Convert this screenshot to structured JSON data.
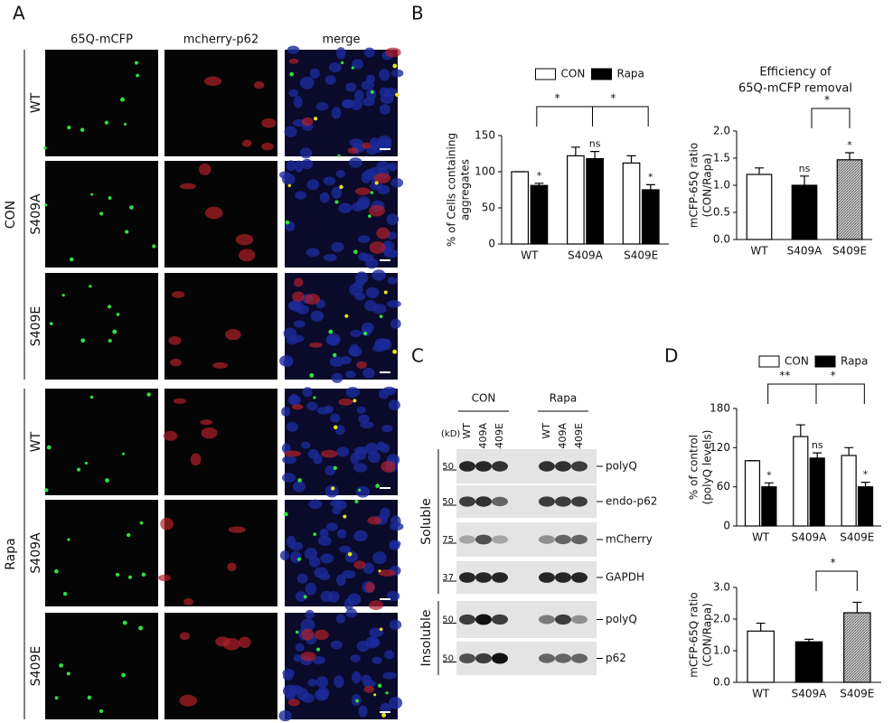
{
  "panel_labels": [
    "A",
    "B",
    "C",
    "D"
  ],
  "panel_a": {
    "columns": [
      "65Q-mCFP",
      "mcherry-p62",
      "merge"
    ],
    "groups": [
      {
        "label": "CON",
        "rows": [
          "WT",
          "S409A",
          "S409E"
        ]
      },
      {
        "label": "Rapa",
        "rows": [
          "WT",
          "S409A",
          "S409E"
        ]
      }
    ]
  },
  "chart_data": [
    {
      "type": "bar",
      "ylabel": [
        "% of Cells containing",
        "aggregates"
      ],
      "categories": [
        "WT",
        "S409A",
        "S409E"
      ],
      "series": [
        {
          "name": "CON",
          "color": "#ffffff",
          "values": [
            100,
            122,
            112
          ],
          "errors": [
            0,
            12,
            10
          ],
          "annotations": [
            null,
            null,
            null
          ]
        },
        {
          "name": "Rapa",
          "color": "#000000",
          "values": [
            81,
            118,
            75
          ],
          "errors": [
            3,
            10,
            7
          ],
          "annotations": [
            "*",
            "ns",
            "*"
          ]
        }
      ],
      "ylim": [
        0,
        150
      ],
      "yticks": [
        0,
        50,
        100,
        150
      ],
      "legend": "top",
      "brackets": [
        {
          "categories": [
            "WT",
            "S409A"
          ],
          "label": "*"
        },
        {
          "categories": [
            "S409A",
            "S409E"
          ],
          "label": "*"
        }
      ]
    },
    {
      "type": "bar",
      "title": [
        "Efficiency of",
        "65Q-mCFP removal"
      ],
      "ylabel": [
        "mCFP-65Q ratio",
        "(CON/Rapa)"
      ],
      "categories": [
        "WT",
        "S409A",
        "S409E"
      ],
      "values": [
        1.2,
        1.0,
        1.47
      ],
      "errors": [
        0.12,
        0.17,
        0.13
      ],
      "colors": [
        "#ffffff",
        "#000000",
        "#bdbdbd"
      ],
      "hatch": [
        false,
        false,
        true
      ],
      "annotations": [
        null,
        "ns",
        "*"
      ],
      "ylim": [
        0,
        2.0
      ],
      "yticks": [
        {
          "value": 0,
          "label": "0.0"
        },
        {
          "value": 0.5,
          "label": "0.5"
        },
        {
          "value": 1,
          "label": "1.0"
        },
        {
          "value": 1.5,
          "label": "1.5"
        },
        {
          "value": 2,
          "label": "2.0"
        }
      ],
      "brackets": [
        {
          "categories": [
            "S409A",
            "S409E"
          ],
          "label": "*"
        }
      ]
    },
    {
      "type": "bar",
      "ylabel": [
        "% of control",
        "(polyQ levels)"
      ],
      "categories": [
        "WT",
        "S409A",
        "S409E"
      ],
      "series": [
        {
          "name": "CON",
          "color": "#ffffff",
          "values": [
            100,
            137,
            108
          ],
          "errors": [
            0,
            18,
            12
          ],
          "annotations": [
            null,
            null,
            null
          ]
        },
        {
          "name": "Rapa",
          "color": "#000000",
          "values": [
            60,
            104,
            60
          ],
          "errors": [
            6,
            8,
            7
          ],
          "annotations": [
            "*",
            "ns",
            "*"
          ]
        }
      ],
      "ylim": [
        0,
        180
      ],
      "yticks": [
        0,
        60,
        120,
        180
      ],
      "legend": "top",
      "brackets": [
        {
          "categories": [
            "WT",
            "S409A"
          ],
          "label": "**"
        },
        {
          "categories": [
            "S409A",
            "S409E"
          ],
          "label": "*"
        }
      ]
    },
    {
      "type": "bar",
      "ylabel": [
        "mCFP-65Q ratio",
        "(CON/Rapa)"
      ],
      "categories": [
        "WT",
        "S409A",
        "S409E"
      ],
      "values": [
        1.62,
        1.28,
        2.2
      ],
      "errors": [
        0.25,
        0.08,
        0.33
      ],
      "colors": [
        "#ffffff",
        "#000000",
        "#bdbdbd"
      ],
      "hatch": [
        false,
        false,
        true
      ],
      "annotations": [
        null,
        null,
        null
      ],
      "ylim": [
        0,
        3.0
      ],
      "yticks": [
        {
          "value": 0,
          "label": "0.0"
        },
        {
          "value": 1,
          "label": "1.0"
        },
        {
          "value": 2,
          "label": "2.0"
        },
        {
          "value": 3,
          "label": "3.0"
        }
      ],
      "brackets": [
        {
          "categories": [
            "S409A",
            "S409E"
          ],
          "label": "*"
        }
      ]
    }
  ],
  "panel_c": {
    "groups": [
      "CON",
      "Rapa"
    ],
    "lanes": [
      "WT",
      "S409A",
      "S409E",
      "WT",
      "S409A",
      "S409E"
    ],
    "unit": "(kD)",
    "fractions": [
      {
        "label": "Soluble",
        "blots": [
          {
            "marker": "50",
            "label": "polyQ"
          },
          {
            "marker": "50",
            "label": "endo-p62"
          },
          {
            "marker": "75",
            "label": "mCherry"
          },
          {
            "marker": "37",
            "label": "GAPDH"
          }
        ]
      },
      {
        "label": "Insoluble",
        "blots": [
          {
            "marker": "50",
            "label": "polyQ"
          },
          {
            "marker": "50",
            "label": "p62"
          }
        ]
      }
    ]
  }
}
